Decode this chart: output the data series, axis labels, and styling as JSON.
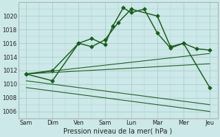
{
  "background_color": "#cce8e8",
  "grid_color": "#aacccc",
  "line_color": "#1a5e1a",
  "x_labels": [
    "Sam",
    "Dim",
    "Ven",
    "Sam",
    "Lun",
    "Mar",
    "Mer",
    "Jeu"
  ],
  "x_ticks": [
    0,
    1,
    2,
    3,
    4,
    5,
    6,
    7
  ],
  "ylim": [
    1005.0,
    1022.0
  ],
  "yticks": [
    1006,
    1008,
    1010,
    1012,
    1014,
    1016,
    1018,
    1020
  ],
  "xlabel": "Pression niveau de la mer( hPa )",
  "series": {
    "line1": {
      "x": [
        0,
        1,
        2,
        2.5,
        3,
        3.3,
        3.7,
        4,
        4.5,
        5,
        5.5,
        6,
        6.5,
        7
      ],
      "y": [
        1011.5,
        1012.0,
        1016.0,
        1016.7,
        1015.8,
        1018.5,
        1021.2,
        1020.5,
        1021.0,
        1017.5,
        1015.3,
        1016.0,
        1015.2,
        1015.0
      ],
      "marker": "D",
      "markersize": 2.5,
      "linewidth": 1.1,
      "linestyle": "-"
    },
    "line2": {
      "x": [
        0,
        1,
        2,
        2.5,
        3,
        3.5,
        4,
        5,
        5.5,
        6,
        7
      ],
      "y": [
        1011.5,
        1010.5,
        1016.0,
        1015.5,
        1016.5,
        1019.0,
        1021.0,
        1020.0,
        1015.5,
        1016.0,
        1009.5
      ],
      "marker": "D",
      "markersize": 2.5,
      "linewidth": 1.1,
      "linestyle": "-"
    },
    "fan1": {
      "x": [
        0,
        7
      ],
      "y": [
        1011.5,
        1014.5
      ],
      "linewidth": 0.8,
      "linestyle": "-"
    },
    "fan2": {
      "x": [
        0,
        7
      ],
      "y": [
        1011.5,
        1013.0
      ],
      "linewidth": 0.8,
      "linestyle": "-"
    },
    "fan3": {
      "x": [
        0,
        7
      ],
      "y": [
        1010.5,
        1007.0
      ],
      "linewidth": 0.8,
      "linestyle": "-"
    },
    "fan4": {
      "x": [
        0,
        7
      ],
      "y": [
        1009.5,
        1006.0
      ],
      "linewidth": 0.8,
      "linestyle": "-"
    }
  }
}
